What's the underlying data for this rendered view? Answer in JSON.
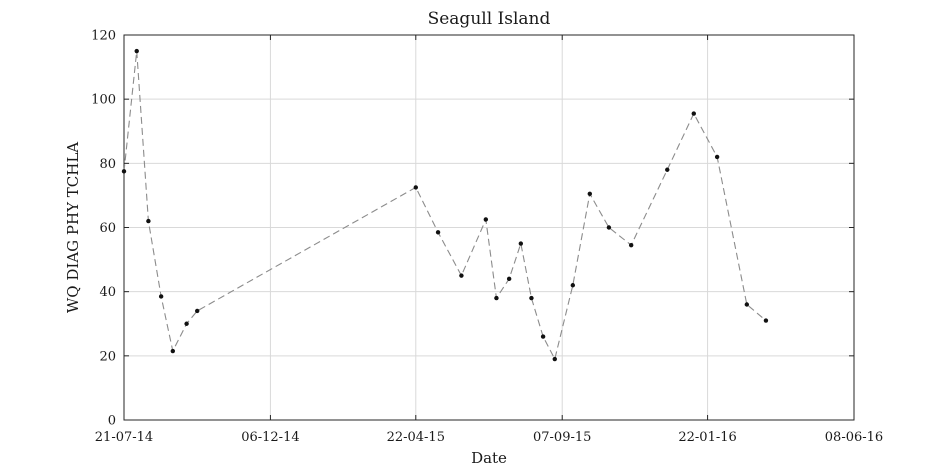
{
  "chart_data": {
    "type": "line",
    "title": "Seagull Island",
    "xlabel": "Date",
    "ylabel": "WQ DIAG PHY TCHLA",
    "x_type": "date",
    "xlim": [
      "2014-07-21",
      "2016-06-08"
    ],
    "xticks": [
      {
        "date": "2014-07-21",
        "label": "21-07-14"
      },
      {
        "date": "2014-12-06",
        "label": "06-12-14"
      },
      {
        "date": "2015-04-22",
        "label": "22-04-15"
      },
      {
        "date": "2015-09-07",
        "label": "07-09-15"
      },
      {
        "date": "2016-01-22",
        "label": "22-01-16"
      },
      {
        "date": "2016-06-08",
        "label": "08-06-16"
      }
    ],
    "ylim": [
      0,
      120
    ],
    "yticks": [
      0,
      20,
      40,
      60,
      80,
      100,
      120
    ],
    "grid": true,
    "colors": {
      "line": "#8c8c8c",
      "marker": "#111111",
      "grid": "#d9d9d9",
      "axis": "#262626"
    },
    "series": [
      {
        "line_style": "dashed",
        "marker": "dot",
        "points": [
          {
            "x": "2014-07-21",
            "y": 77.5
          },
          {
            "x": "2014-08-02",
            "y": 115.0
          },
          {
            "x": "2014-08-13",
            "y": 62.0
          },
          {
            "x": "2014-08-25",
            "y": 38.5
          },
          {
            "x": "2014-09-05",
            "y": 21.5
          },
          {
            "x": "2014-09-18",
            "y": 30.0
          },
          {
            "x": "2014-09-28",
            "y": 34.0
          },
          {
            "x": "2015-04-22",
            "y": 72.5
          },
          {
            "x": "2015-05-13",
            "y": 58.5
          },
          {
            "x": "2015-06-04",
            "y": 45.0
          },
          {
            "x": "2015-06-27",
            "y": 62.5
          },
          {
            "x": "2015-07-07",
            "y": 38.0
          },
          {
            "x": "2015-07-19",
            "y": 44.0
          },
          {
            "x": "2015-07-30",
            "y": 55.0
          },
          {
            "x": "2015-08-09",
            "y": 38.0
          },
          {
            "x": "2015-08-20",
            "y": 26.0
          },
          {
            "x": "2015-08-31",
            "y": 19.0
          },
          {
            "x": "2015-09-17",
            "y": 42.0
          },
          {
            "x": "2015-10-03",
            "y": 70.5
          },
          {
            "x": "2015-10-21",
            "y": 60.0
          },
          {
            "x": "2015-11-11",
            "y": 54.5
          },
          {
            "x": "2015-12-15",
            "y": 78.0
          },
          {
            "x": "2016-01-09",
            "y": 95.5
          },
          {
            "x": "2016-01-31",
            "y": 82.0
          },
          {
            "x": "2016-02-28",
            "y": 36.0
          },
          {
            "x": "2016-03-17",
            "y": 31.0
          }
        ]
      }
    ]
  }
}
